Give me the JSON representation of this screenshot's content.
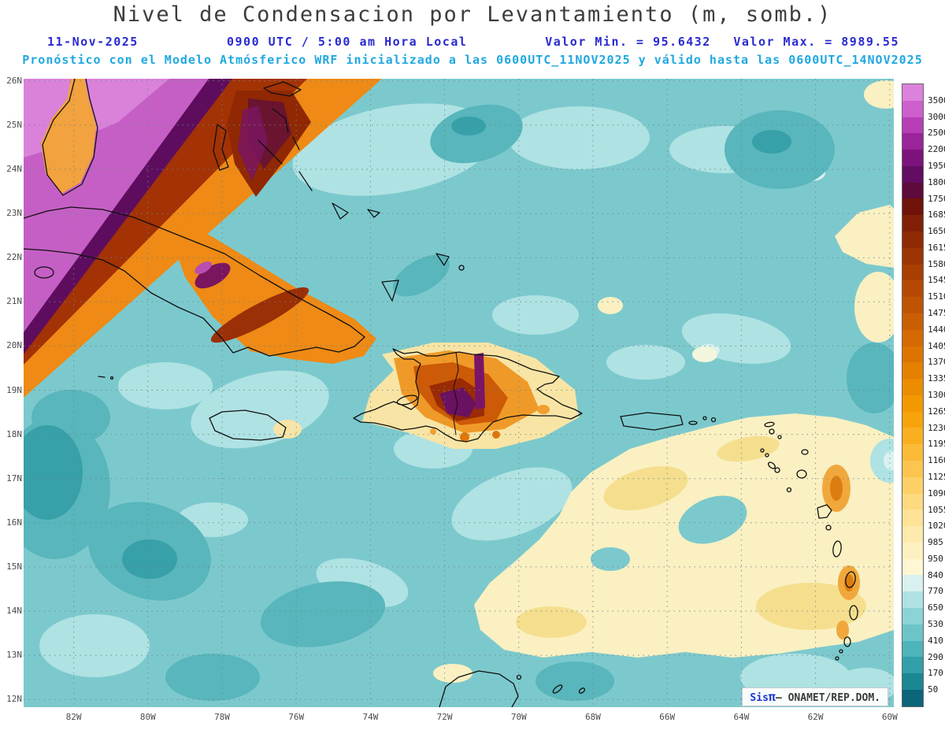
{
  "title": "Nivel de Condensacion por Levantamiento (m, somb.)",
  "header": {
    "date": "11-Nov-2025",
    "time": "0900 UTC / 5:00 am Hora Local",
    "value_min": "Valor Min. = 95.6432",
    "value_max": "Valor Max. = 8989.55",
    "forecast": "Pronóstico con el Modelo Atmósferico WRF inicializado a las 0600UTC_11NOV2025 y válido hasta las 0600UTC_14NOV2025"
  },
  "credit": {
    "prefix": "Sis",
    "pi": "π",
    "suffix": "– ONAMET/REP.DOM."
  },
  "colors": {
    "title_text": "#3d3d3d",
    "header_blue": "#2a2ad0",
    "header_cyan": "#20a8e0",
    "axis_text": "#4c4c4c",
    "ocean_base": "#7cc9cd"
  },
  "chart_data": {
    "type": "heatmap",
    "title": "Nivel de Condensacion por Levantamiento (m, somb.)",
    "units": "m",
    "date": "11-Nov-2025",
    "valid_time": "0900 UTC / 5:00 am Hora Local",
    "model_run": "0600UTC_11NOV2025",
    "valid_until": "0600UTC_14NOV2025",
    "value_min": 95.6432,
    "value_max": 8989.55,
    "lat_ticks": [
      "26N",
      "25N",
      "24N",
      "23N",
      "22N",
      "21N",
      "20N",
      "19N",
      "18N",
      "17N",
      "16N",
      "15N",
      "14N",
      "13N",
      "12N"
    ],
    "lon_ticks": [
      "82W",
      "80W",
      "78W",
      "76W",
      "74W",
      "72W",
      "70W",
      "68W",
      "66W",
      "64W",
      "62W",
      "60W"
    ],
    "colorbar": {
      "levels": [
        "3500",
        "3000",
        "2500",
        "2200",
        "1950",
        "1800",
        "1750",
        "1685",
        "1650",
        "1615",
        "1580",
        "1545",
        "1510",
        "1475",
        "1440",
        "1405",
        "1370",
        "1335",
        "1300",
        "1265",
        "1230",
        "1195",
        "1160",
        "1125",
        "1090",
        "1055",
        "1020",
        "985",
        "950",
        "840",
        "770",
        "650",
        "530",
        "410",
        "290",
        "170",
        "50"
      ],
      "colors": [
        "#DC82DC",
        "#CD5FCD",
        "#B73EB7",
        "#9A249A",
        "#7C137C",
        "#620C62",
        "#5E0A3C",
        "#6F1209",
        "#812006",
        "#8F2A04",
        "#9C3403",
        "#A93E03",
        "#B54903",
        "#C05302",
        "#CA5E02",
        "#D46902",
        "#DD7401",
        "#E58001",
        "#EC8C01",
        "#F29801",
        "#F6A30C",
        "#F9AF20",
        "#FBBA37",
        "#FCC54F",
        "#FDD067",
        "#FDDA7F",
        "#FEE296",
        "#FEEAAC",
        "#FEF1C1",
        "#FFF6D4",
        "#D9F1EF",
        "#AFE2E3",
        "#8CD3D6",
        "#6CC4C9",
        "#4EB4BB",
        "#339FA9",
        "#1A8793",
        "#0B657B"
      ]
    },
    "high_value_regions": "NW corner (Florida Straits / Cuba) and central Hispaniola show maxima; SE Caribbean broad 950-1100 m band",
    "legend_position": "right"
  }
}
